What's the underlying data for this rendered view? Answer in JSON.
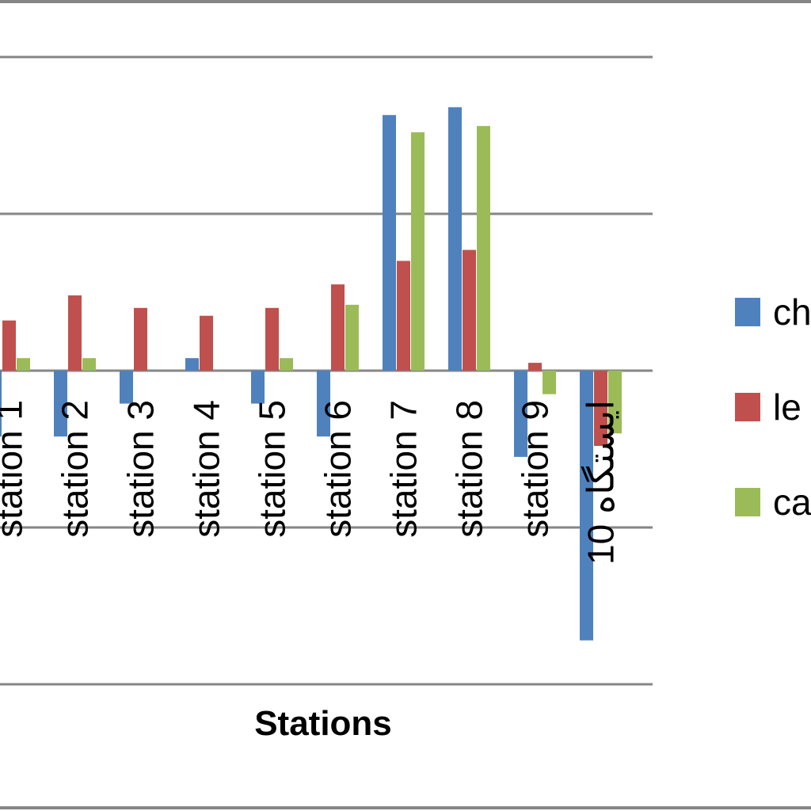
{
  "chart_data": {
    "type": "bar",
    "categories": [
      "station 1",
      "station 2",
      "station 3",
      "station 4",
      "station 5",
      "station 6",
      "station 7",
      "station 8",
      "station 9",
      "ایستگاه 10"
    ],
    "series": [
      {
        "name": "ch",
        "color": "#4f81bd",
        "values": [
          -0.42,
          -0.42,
          -0.21,
          0.08,
          -0.21,
          -0.42,
          1.63,
          1.68,
          -0.55,
          -1.72
        ]
      },
      {
        "name": "le",
        "color": "#c0504d",
        "values": [
          0.32,
          0.48,
          0.4,
          0.35,
          0.4,
          0.55,
          0.7,
          0.77,
          0.05,
          -0.48
        ]
      },
      {
        "name": "ca",
        "color": "#9bbb59",
        "values": [
          0.08,
          0.08,
          0.0,
          0.0,
          0.08,
          0.42,
          1.52,
          1.56,
          -0.15,
          -0.4
        ]
      }
    ],
    "xlabel": "Stations",
    "ylim": [
      -2,
      2
    ],
    "grid": true,
    "legend_position": "right"
  }
}
